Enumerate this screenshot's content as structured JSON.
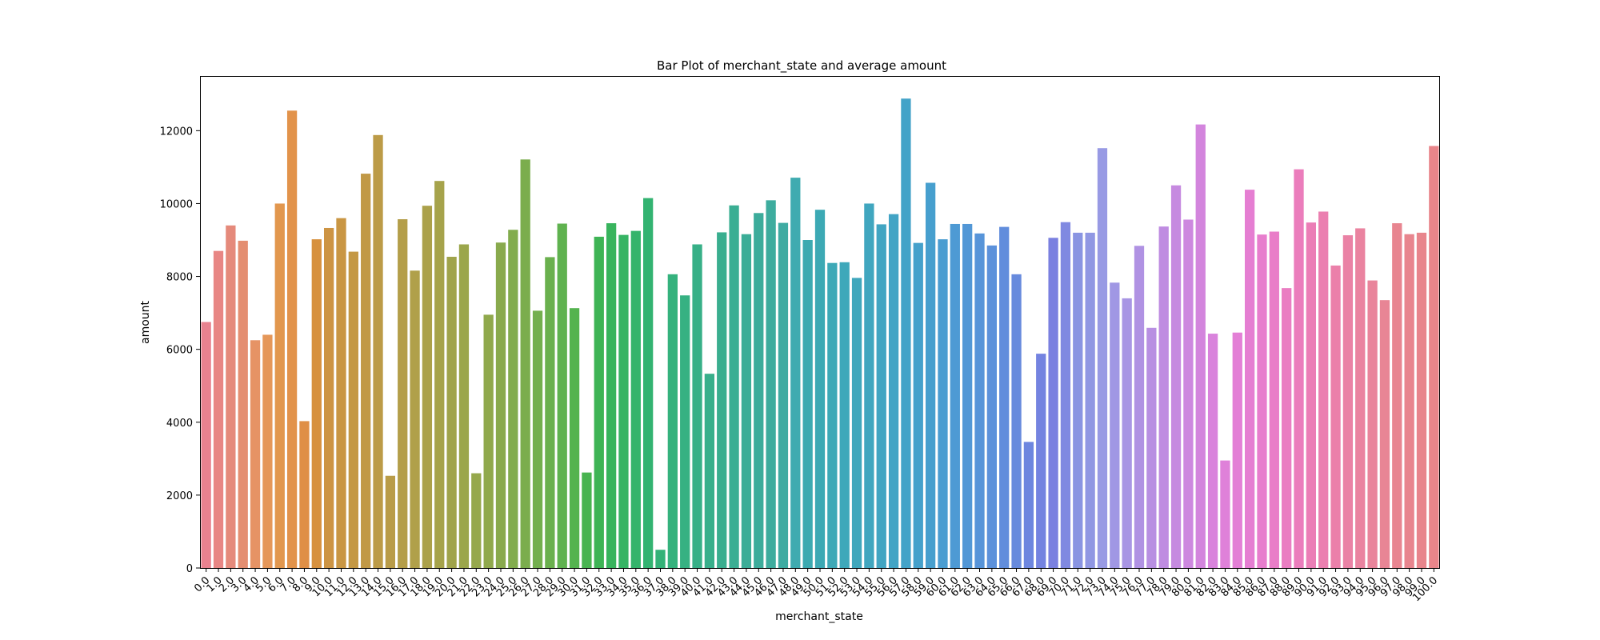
{
  "chart_data": {
    "type": "bar",
    "title": "Bar Plot of merchant_state and average amount",
    "xlabel": "merchant_state",
    "ylabel": "amount",
    "ylim": [
      0,
      13500
    ],
    "yticks": [
      0,
      2000,
      4000,
      6000,
      8000,
      10000,
      12000
    ],
    "legend": "none",
    "grid": false,
    "categories": [
      "0.0",
      "1.0",
      "2.0",
      "3.0",
      "4.0",
      "5.0",
      "6.0",
      "7.0",
      "8.0",
      "9.0",
      "10.0",
      "11.0",
      "12.0",
      "13.0",
      "14.0",
      "15.0",
      "16.0",
      "17.0",
      "18.0",
      "19.0",
      "20.0",
      "21.0",
      "22.0",
      "23.0",
      "24.0",
      "25.0",
      "26.0",
      "27.0",
      "28.0",
      "29.0",
      "30.0",
      "31.0",
      "32.0",
      "33.0",
      "34.0",
      "35.0",
      "36.0",
      "37.0",
      "38.0",
      "39.0",
      "40.0",
      "41.0",
      "42.0",
      "43.0",
      "44.0",
      "45.0",
      "46.0",
      "47.0",
      "48.0",
      "49.0",
      "50.0",
      "51.0",
      "52.0",
      "53.0",
      "54.0",
      "55.0",
      "56.0",
      "57.0",
      "58.0",
      "59.0",
      "60.0",
      "61.0",
      "62.0",
      "63.0",
      "64.0",
      "65.0",
      "66.0",
      "67.0",
      "68.0",
      "69.0",
      "70.0",
      "71.0",
      "72.0",
      "73.0",
      "74.0",
      "75.0",
      "76.0",
      "77.0",
      "78.0",
      "79.0",
      "80.0",
      "81.0",
      "82.0",
      "83.0",
      "84.0",
      "85.0",
      "86.0",
      "87.0",
      "88.0",
      "89.0",
      "90.0",
      "91.0",
      "92.0",
      "93.0",
      "94.0",
      "95.0",
      "96.0",
      "97.0",
      "98.0",
      "99.0",
      "100.0"
    ],
    "values": [
      6750,
      8700,
      9400,
      8980,
      6250,
      6400,
      10000,
      12550,
      4030,
      9020,
      9330,
      9600,
      8680,
      10820,
      11880,
      2530,
      9570,
      8160,
      9940,
      10620,
      8540,
      8880,
      2600,
      6950,
      8930,
      9280,
      11210,
      7060,
      8530,
      9450,
      7130,
      2620,
      9090,
      9460,
      9140,
      9250,
      10150,
      500,
      8060,
      7480,
      8880,
      5330,
      9210,
      9950,
      9160,
      9740,
      10090,
      9470,
      10710,
      9000,
      9830,
      8370,
      8390,
      7960,
      10000,
      9430,
      9710,
      12880,
      8920,
      10570,
      9020,
      9440,
      9440,
      9180,
      8850,
      9360,
      8060,
      3460,
      5880,
      9060,
      9490,
      9200,
      9200,
      11520,
      7830,
      7400,
      8840,
      6590,
      9370,
      10500,
      9560,
      12170,
      6430,
      2950,
      6460,
      10380,
      9150,
      9230,
      7680,
      10940,
      9480,
      9780,
      8300,
      9130,
      9320,
      7890,
      7350,
      9460,
      9160,
      9200,
      11580
    ],
    "colors": [
      "#e8828f",
      "#e88684",
      "#e58a7b",
      "#e48e71",
      "#e69365",
      "#e59759",
      "#e2974e",
      "#e2934b",
      "#df8f46",
      "#d7913e",
      "#cd9443",
      "#c99643",
      "#c49844",
      "#c19946",
      "#bc9b47",
      "#b99c48",
      "#b49e49",
      "#b0a04a",
      "#aba14a",
      "#a6a34b",
      "#a0a44b",
      "#9ba64b",
      "#96a84c",
      "#90a94c",
      "#89aa4d",
      "#82ac4d",
      "#7bad4d",
      "#73af4e",
      "#6ab04e",
      "#5fb24f",
      "#54b34f",
      "#48b450",
      "#3eb455",
      "#38b45d",
      "#36b464",
      "#34b46b",
      "#33b371",
      "#34b278",
      "#35b27d",
      "#36b182",
      "#37b087",
      "#38af8b",
      "#39ae8f",
      "#3aae93",
      "#3bad97",
      "#3cac9b",
      "#3dac9e",
      "#3eaba2",
      "#3fabb0",
      "#3caab1",
      "#3ca9b4",
      "#3da9b7",
      "#3ea8ba",
      "#3fa7bc",
      "#40a6bf",
      "#41a5c2",
      "#42a4c5",
      "#43a3c8",
      "#45a1cb",
      "#479fce",
      "#4a9dd1",
      "#4e9ad4",
      "#5297d6",
      "#5794d9",
      "#5c91db",
      "#618ddc",
      "#678add",
      "#6d86df",
      "#7483e0",
      "#7a80e0",
      "#8089e1",
      "#8994e2",
      "#9097e3",
      "#989ae4",
      "#a097e4",
      "#a895e4",
      "#b092e3",
      "#b88fe2",
      "#bf8ce1",
      "#c68ae0",
      "#cd88df",
      "#d385dd",
      "#d983dc",
      "#df81d9",
      "#e37fd6",
      "#e57ed2",
      "#e77dcd",
      "#e97dc8",
      "#ea7dc2",
      "#eb7dbc",
      "#eb7eb6",
      "#eb7fb0",
      "#eb80aa",
      "#ea82a5",
      "#ea83a0",
      "#e9849b",
      "#e88595",
      "#e88590",
      "#e8858e",
      "#e8858c",
      "#e8858a"
    ]
  }
}
